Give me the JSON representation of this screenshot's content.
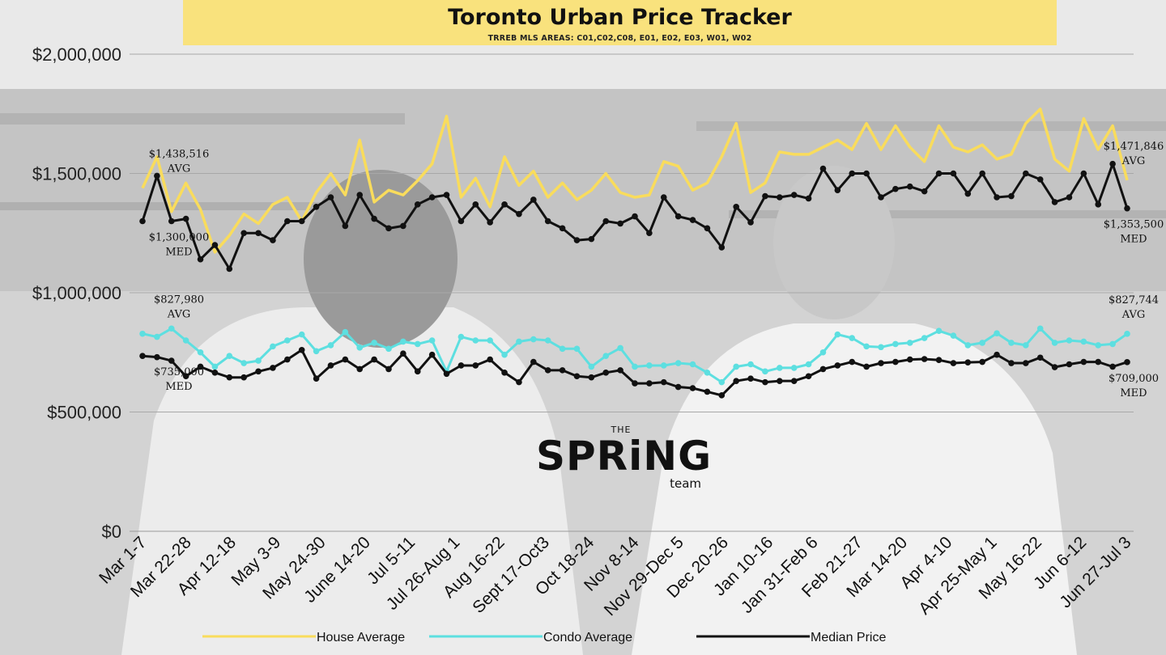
{
  "header": {
    "title": "Toronto Urban Price Tracker",
    "subtitle": "TRREB MLS AREAS: C01,C02,C08, E01, E02, E03, W01, W02"
  },
  "logo": {
    "top": "THE",
    "main": "SPRiNG",
    "bottom": "team"
  },
  "colors": {
    "house": "#f9dc5c",
    "condo": "#5ddfe0",
    "median": "#111111",
    "title_bg": "#f9e27d"
  },
  "chart_data": {
    "type": "line",
    "title": "Toronto Urban Price Tracker",
    "ylim": [
      0,
      2000000
    ],
    "y_ticks": [
      "$0",
      "$500,000",
      "$1,000,000",
      "$1,500,000",
      "$2,000,000"
    ],
    "x_tick_labels": [
      "Mar 1-7",
      "Mar 22-28",
      "Apr 12-18",
      "May 3-9",
      "May 24-30",
      "June 14-20",
      "Jul 5-11",
      "Jul 26-Aug 1",
      "Aug 16-22",
      "Sept 17-Oct3",
      "Oct 18-24",
      "Nov 8-14",
      "Nov 29-Dec 5",
      "Dec 20-26",
      "Jan 10-16",
      "Jan 31-Feb 6",
      "Feb 21-27",
      "Mar 14-20",
      "Apr 4-10",
      "Apr 25-May 1",
      "May 16-22",
      "Jun 6-12",
      "Jun 27-Jul 3"
    ],
    "grid": true,
    "legend_position": "bottom",
    "series": [
      {
        "name": "House Average",
        "color": "#f9dc5c",
        "markers": false,
        "values": [
          1438516,
          1570000,
          1340000,
          1460000,
          1350000,
          1170000,
          1240000,
          1330000,
          1290000,
          1370000,
          1400000,
          1300000,
          1420000,
          1500000,
          1410000,
          1640000,
          1380000,
          1430000,
          1410000,
          1470000,
          1540000,
          1740000,
          1400000,
          1480000,
          1360000,
          1570000,
          1450000,
          1510000,
          1400000,
          1460000,
          1390000,
          1430000,
          1500000,
          1420000,
          1400000,
          1410000,
          1550000,
          1530000,
          1430000,
          1460000,
          1570000,
          1710000,
          1420000,
          1460000,
          1590000,
          1580000,
          1580000,
          1610000,
          1640000,
          1600000,
          1710000,
          1600000,
          1700000,
          1610000,
          1550000,
          1700000,
          1610000,
          1590000,
          1620000,
          1560000,
          1580000,
          1710000,
          1770000,
          1560000,
          1510000,
          1730000,
          1600000,
          1700000,
          1471846
        ]
      },
      {
        "name": "Condo Average",
        "color": "#5ddfe0",
        "markers": true,
        "values": [
          827980,
          815000,
          850000,
          800000,
          750000,
          690000,
          735000,
          705000,
          715000,
          775000,
          800000,
          825000,
          755000,
          780000,
          835000,
          770000,
          790000,
          765000,
          795000,
          785000,
          800000,
          670000,
          815000,
          800000,
          800000,
          740000,
          795000,
          805000,
          800000,
          765000,
          765000,
          690000,
          735000,
          768000,
          690000,
          695000,
          695000,
          705000,
          700000,
          665000,
          625000,
          690000,
          700000,
          670000,
          685000,
          685000,
          700000,
          750000,
          825000,
          810000,
          775000,
          772000,
          785000,
          790000,
          810000,
          840000,
          820000,
          780000,
          790000,
          830000,
          790000,
          780000,
          850000,
          790000,
          800000,
          795000,
          780000,
          785000,
          827744
        ]
      },
      {
        "name": "Median Price",
        "color": "#111111",
        "markers": true,
        "values": [
          735000,
          730000,
          715000,
          650000,
          690000,
          665000,
          645000,
          645000,
          670000,
          685000,
          720000,
          760000,
          640000,
          695000,
          720000,
          680000,
          720000,
          680000,
          745000,
          670000,
          740000,
          660000,
          695000,
          695000,
          720000,
          665000,
          625000,
          710000,
          675000,
          675000,
          650000,
          645000,
          665000,
          675000,
          620000,
          620000,
          625000,
          605000,
          600000,
          585000,
          570000,
          630000,
          640000,
          625000,
          630000,
          630000,
          650000,
          680000,
          695000,
          710000,
          690000,
          705000,
          710000,
          720000,
          722000,
          718000,
          705000,
          708000,
          710000,
          740000,
          705000,
          705000,
          728000,
          688000,
          700000,
          710000,
          710000,
          690000,
          709000
        ]
      },
      {
        "name": "Median Price",
        "color": "#111111",
        "markers": true,
        "legend": false,
        "values": [
          1300000,
          1490000,
          1300000,
          1310000,
          1140000,
          1200000,
          1100000,
          1250000,
          1250000,
          1220000,
          1300000,
          1300000,
          1360000,
          1400000,
          1280000,
          1410000,
          1310000,
          1270000,
          1280000,
          1370000,
          1400000,
          1410000,
          1300000,
          1370000,
          1295000,
          1370000,
          1330000,
          1390000,
          1300000,
          1270000,
          1220000,
          1225000,
          1300000,
          1290000,
          1320000,
          1250000,
          1400000,
          1320000,
          1305000,
          1270000,
          1190000,
          1360000,
          1295000,
          1405000,
          1400000,
          1410000,
          1395000,
          1520000,
          1430000,
          1500000,
          1500000,
          1400000,
          1435000,
          1445000,
          1425000,
          1500000,
          1500000,
          1415000,
          1500000,
          1400000,
          1405000,
          1500000,
          1475000,
          1380000,
          1400000,
          1500000,
          1370000,
          1540000,
          1353500
        ]
      }
    ],
    "annotations": [
      {
        "series": "House Average",
        "point": "first",
        "value": "$1,438,516",
        "tag": "AVG"
      },
      {
        "series": "House Average",
        "point": "last",
        "value": "$1,471,846",
        "tag": "AVG"
      },
      {
        "series": "Median Price",
        "point": "first",
        "value": "$1,300,000",
        "tag": "MED"
      },
      {
        "series": "Median Price",
        "point": "last",
        "value": "$1,353,500",
        "tag": "MED"
      },
      {
        "series": "Condo Average",
        "point": "first",
        "value": "$827,980",
        "tag": "AVG"
      },
      {
        "series": "Condo Average",
        "point": "last",
        "value": "$827,744",
        "tag": "AVG"
      },
      {
        "series": "Median Price",
        "point": "first",
        "value": "$735,000",
        "tag": "MED"
      },
      {
        "series": "Median Price",
        "point": "last",
        "value": "$709,000",
        "tag": "MED"
      }
    ]
  }
}
